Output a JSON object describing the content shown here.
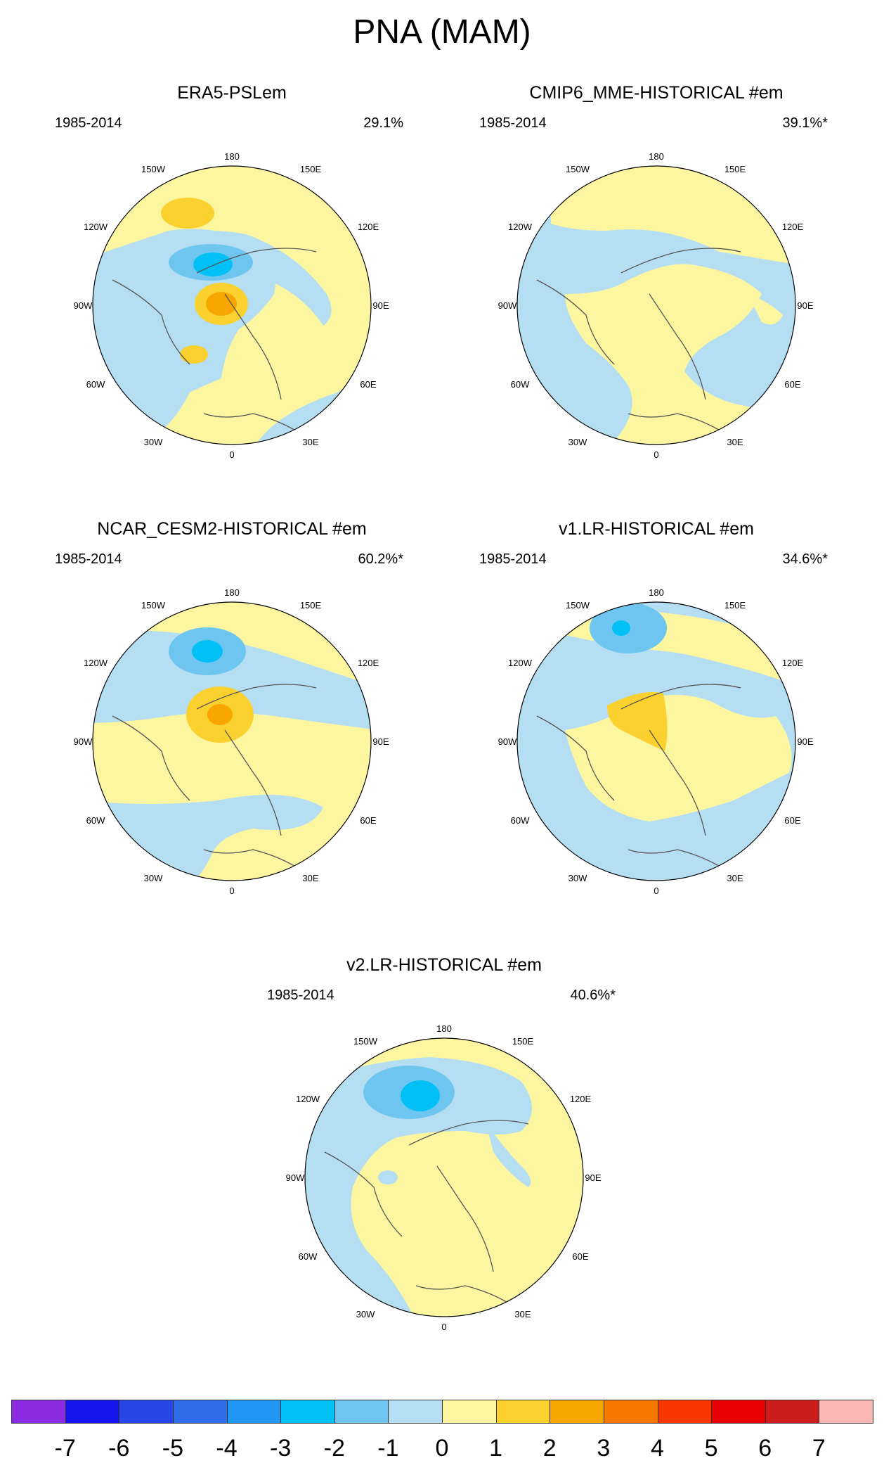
{
  "title": "PNA (MAM)",
  "longitude_labels": [
    "180",
    "150E",
    "120E",
    "90E",
    "60E",
    "30E",
    "0",
    "30W",
    "60W",
    "90W",
    "120W",
    "150W"
  ],
  "panels": [
    {
      "title": "ERA5-PSLem",
      "period": "1985-2014",
      "variance": "29.1%"
    },
    {
      "title": "CMIP6_MME-HISTORICAL  #em",
      "period": "1985-2014",
      "variance": "39.1%*"
    },
    {
      "title": "NCAR_CESM2-HISTORICAL  #em",
      "period": "1985-2014",
      "variance": "60.2%*"
    },
    {
      "title": "v1.LR-HISTORICAL  #em",
      "period": "1985-2014",
      "variance": "34.6%*"
    },
    {
      "title": "v2.LR-HISTORICAL  #em",
      "period": "1985-2014",
      "variance": "40.6%*"
    }
  ],
  "colorbar": {
    "colors": [
      "#8a2be2",
      "#1515f0",
      "#2845e6",
      "#2e6de6",
      "#2196f3",
      "#00c0f5",
      "#6ec6f0",
      "#b5def2",
      "#fdf6a0",
      "#fbd130",
      "#f9a600",
      "#f97800",
      "#f93800",
      "#e60000",
      "#cc1d1d",
      "#fbb6b6"
    ],
    "labels": [
      "-7",
      "-6",
      "-5",
      "-4",
      "-3",
      "-2",
      "-1",
      "0",
      "1",
      "2",
      "3",
      "4",
      "5",
      "6",
      "7"
    ]
  },
  "palette": {
    "yellow": "#fdf6a0",
    "light_blue": "#b5def2",
    "blue2": "#6ec6f0",
    "blue3": "#00c0f5",
    "yellow2": "#fbd130",
    "orange": "#f9a600"
  }
}
